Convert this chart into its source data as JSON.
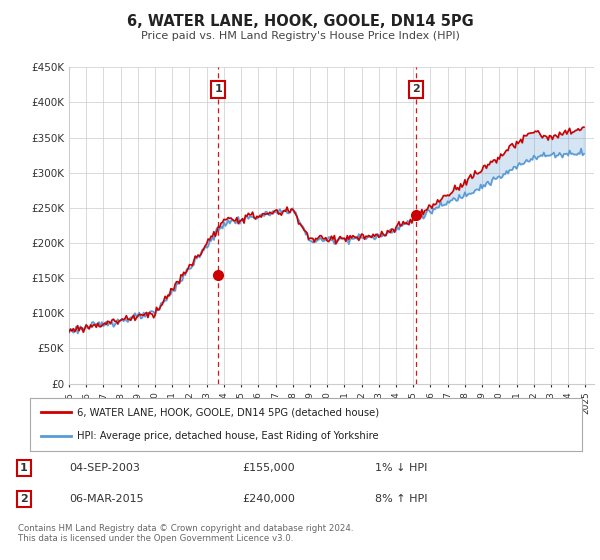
{
  "title": "6, WATER LANE, HOOK, GOOLE, DN14 5PG",
  "subtitle": "Price paid vs. HM Land Registry's House Price Index (HPI)",
  "ylim": [
    0,
    450000
  ],
  "yticks": [
    0,
    50000,
    100000,
    150000,
    200000,
    250000,
    300000,
    350000,
    400000,
    450000
  ],
  "background_color": "#ffffff",
  "plot_bg_color": "#ffffff",
  "purchase1_year": 2003.67,
  "purchase1_price": 155000,
  "purchase2_year": 2015.17,
  "purchase2_price": 240000,
  "purchase1_date_str": "04-SEP-2003",
  "purchase1_pct_str": "1% ↓ HPI",
  "purchase1_price_str": "£155,000",
  "purchase2_date_str": "06-MAR-2015",
  "purchase2_pct_str": "8% ↑ HPI",
  "purchase2_price_str": "£240,000",
  "legend_label1": "6, WATER LANE, HOOK, GOOLE, DN14 5PG (detached house)",
  "legend_label2": "HPI: Average price, detached house, East Riding of Yorkshire",
  "footer": "Contains HM Land Registry data © Crown copyright and database right 2024.\nThis data is licensed under the Open Government Licence v3.0.",
  "hpi_color": "#5b9bd5",
  "price_color": "#cc0000",
  "fill_color": "#ddeeff",
  "vline_color": "#cc0000",
  "box_edge_color": "#cc0000",
  "grid_color": "#cccccc",
  "xmin": 1995,
  "xmax": 2025.5
}
